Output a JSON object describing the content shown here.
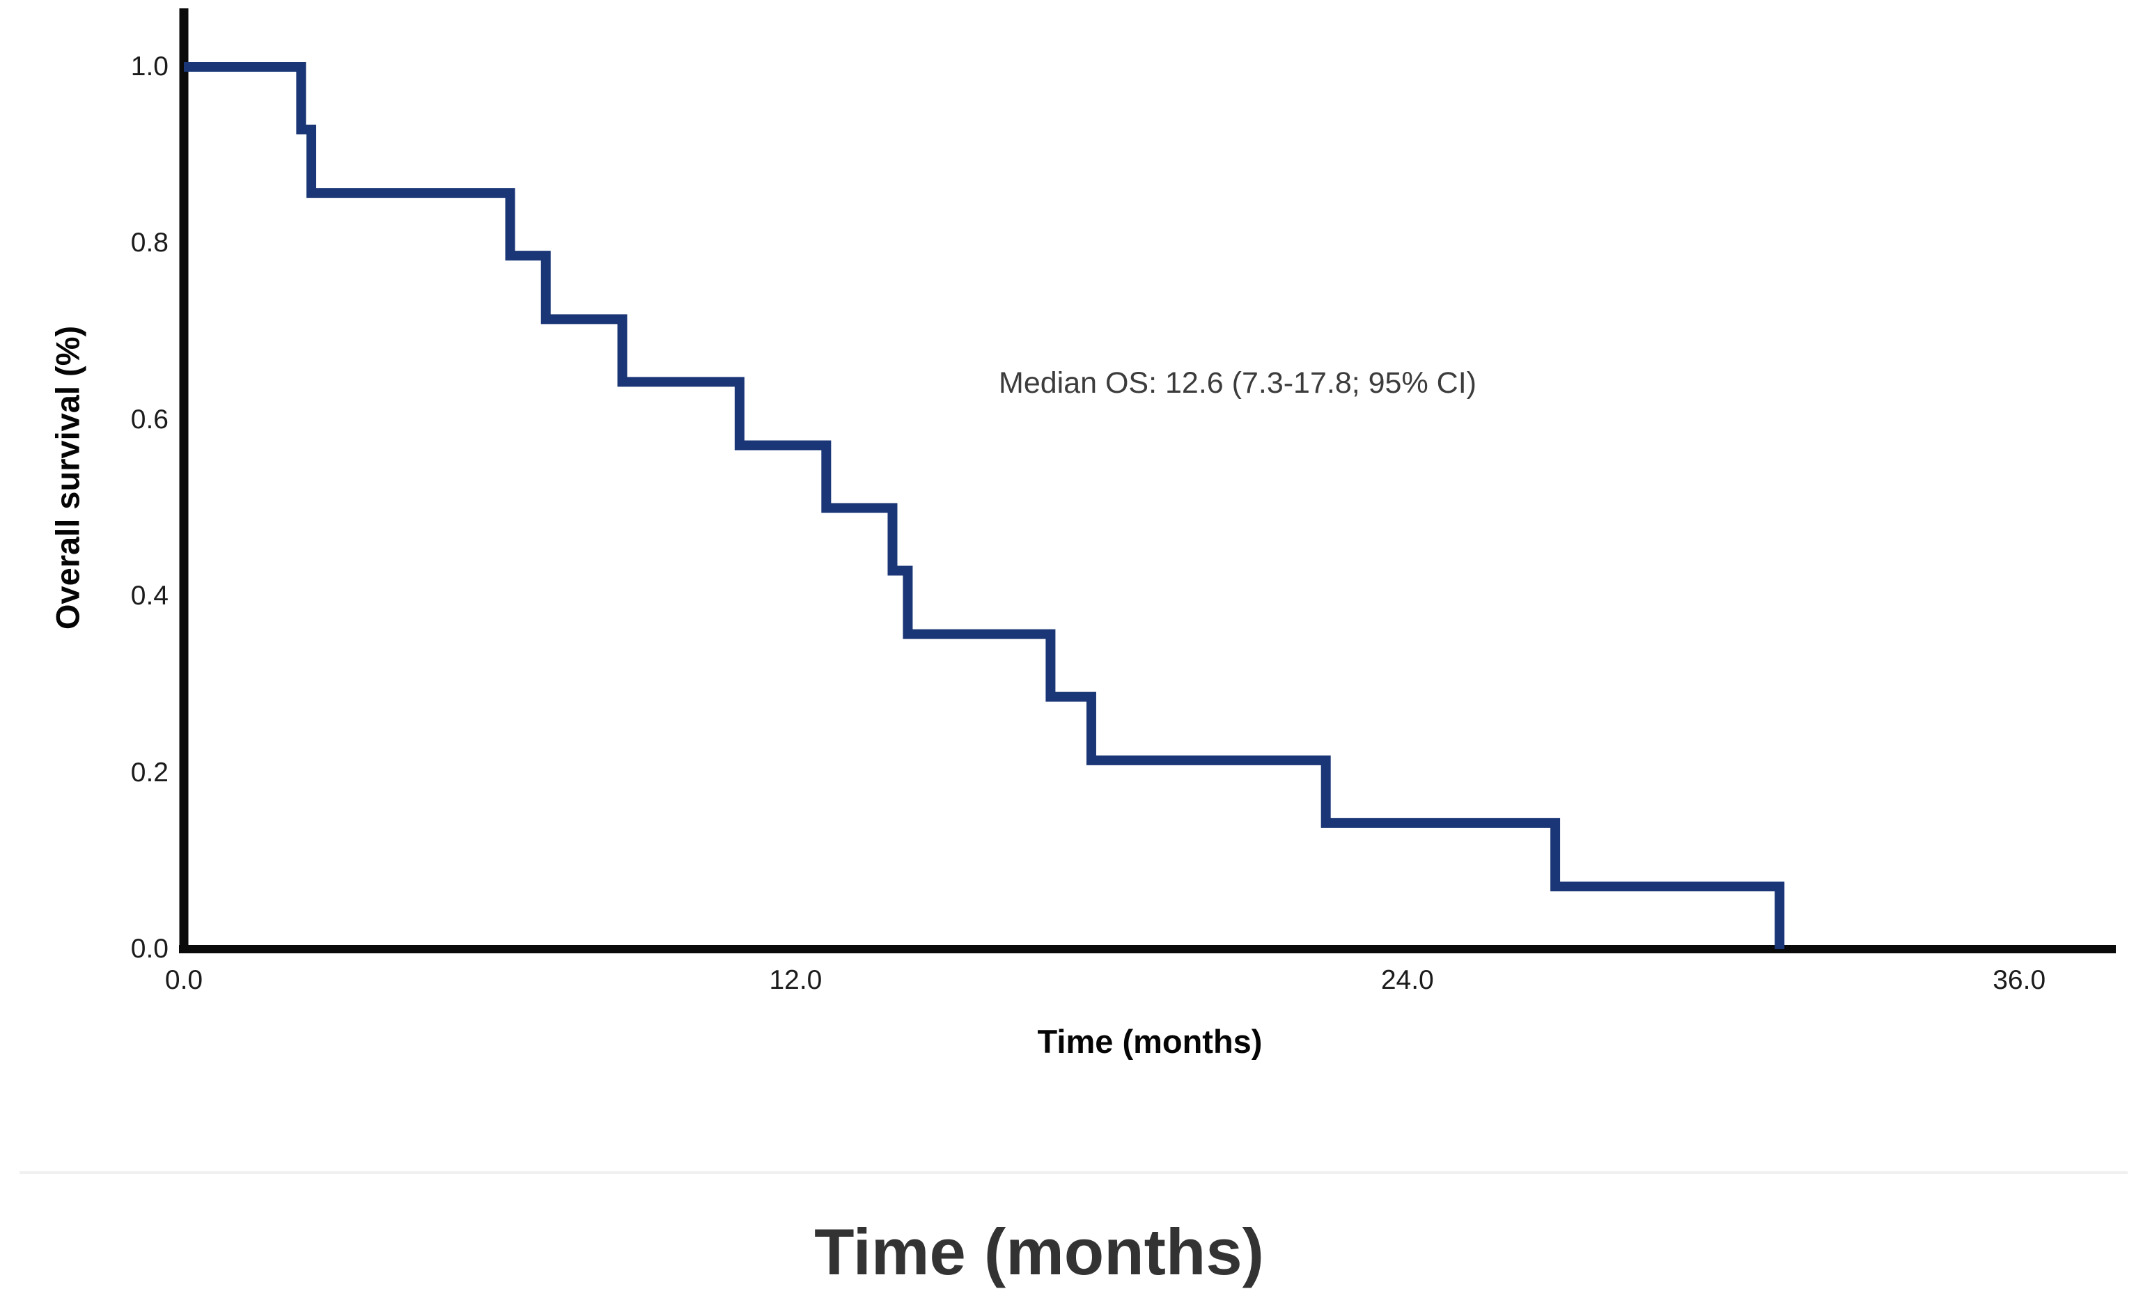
{
  "figure": {
    "caption": "Time (months)",
    "background": "#ffffff"
  },
  "chart_data": {
    "type": "line",
    "chart_kind": "kaplan-meier-step-curve",
    "title": "",
    "xlabel": "Time (months)",
    "ylabel": "Overall survival (%)",
    "annotation": "Median OS: 12.6 (7.3-17.8; 95% CI)",
    "x_tick_labels": [
      "0.0",
      "12.0",
      "24.0",
      "36.0"
    ],
    "x_tick_values": [
      0,
      12,
      24,
      36
    ],
    "y_tick_labels": [
      "0.0",
      "0.2",
      "0.4",
      "0.6",
      "0.8",
      "1.0"
    ],
    "y_tick_values": [
      0,
      0.2,
      0.4,
      0.6,
      0.8,
      1.0
    ],
    "xlim": [
      0,
      37.9
    ],
    "ylim": [
      0,
      1.0
    ],
    "grid": false,
    "legend": "none",
    "line_color": "#1a3676",
    "axis_color": "#0a0a0a",
    "series": [
      {
        "name": "Overall survival",
        "median_os_months": 12.6,
        "ci_95": "7.3-17.8",
        "step_points": [
          {
            "time": 0,
            "survival": 1.0
          },
          {
            "time": 2.3,
            "survival": 0.929
          },
          {
            "time": 2.5,
            "survival": 0.857
          },
          {
            "time": 6.4,
            "survival": 0.786
          },
          {
            "time": 7.1,
            "survival": 0.714
          },
          {
            "time": 8.6,
            "survival": 0.643
          },
          {
            "time": 10.9,
            "survival": 0.571
          },
          {
            "time": 12.6,
            "survival": 0.5
          },
          {
            "time": 13.9,
            "survival": 0.429
          },
          {
            "time": 14.2,
            "survival": 0.357
          },
          {
            "time": 17.0,
            "survival": 0.286
          },
          {
            "time": 17.8,
            "survival": 0.214
          },
          {
            "time": 22.4,
            "survival": 0.143
          },
          {
            "time": 26.9,
            "survival": 0.071
          },
          {
            "time": 31.3,
            "survival": 0.0
          }
        ]
      }
    ]
  }
}
